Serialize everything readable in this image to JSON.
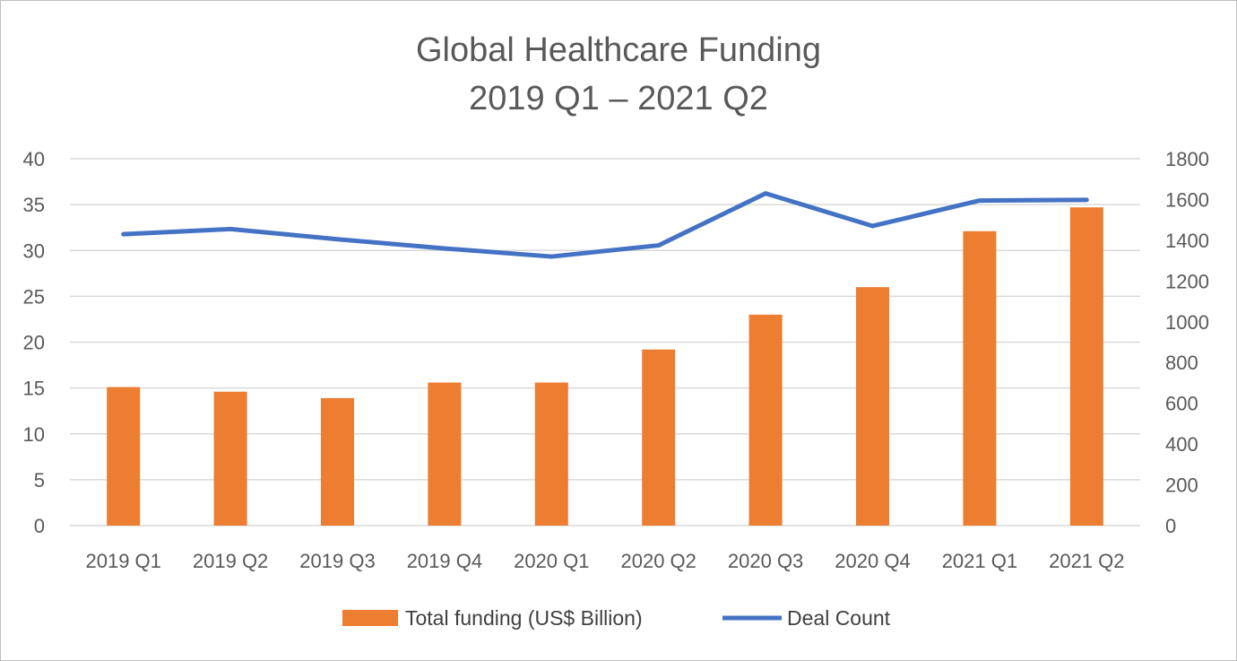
{
  "chart_data": {
    "type": "bar",
    "title_line1": "Global Healthcare Funding",
    "title_line2": "2019 Q1 – 2021 Q2",
    "categories": [
      "2019 Q1",
      "2019 Q2",
      "2019 Q3",
      "2019 Q4",
      "2020 Q1",
      "2020 Q2",
      "2020 Q3",
      "2020 Q4",
      "2021 Q1",
      "2021 Q2"
    ],
    "series": [
      {
        "name": "Total funding (US$ Billion)",
        "type": "bar",
        "axis": "left",
        "color": "#ed7d31",
        "values": [
          15.1,
          14.6,
          13.9,
          15.6,
          15.6,
          19.2,
          23.0,
          26.0,
          32.1,
          34.7
        ]
      },
      {
        "name": "Deal Count",
        "type": "line",
        "axis": "right",
        "color": "#4472c4",
        "values": [
          1430,
          1455,
          1405,
          1360,
          1320,
          1375,
          1630,
          1470,
          1595,
          1598
        ]
      }
    ],
    "y_left": {
      "ylim": [
        0,
        40
      ],
      "ticks": [
        "0",
        "5",
        "10",
        "15",
        "20",
        "25",
        "30",
        "35",
        "40"
      ]
    },
    "y_right": {
      "ylim": [
        0,
        1800
      ],
      "ticks": [
        "0",
        "200",
        "400",
        "600",
        "800",
        "1000",
        "1200",
        "1400",
        "1600",
        "1800"
      ]
    },
    "grid": true,
    "legend_position": "bottom"
  }
}
